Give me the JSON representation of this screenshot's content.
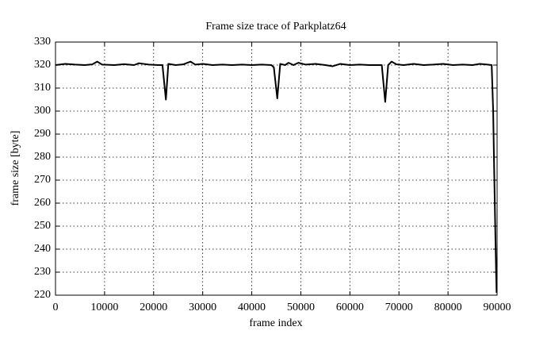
{
  "chart_data": {
    "type": "line",
    "title": "Frame size trace of Parkplatz64",
    "x_label": "frame index",
    "y_label": "frame size [byte]",
    "x": [
      0,
      2000,
      4000,
      6000,
      7500,
      8500,
      9500,
      12000,
      14000,
      16000,
      17000,
      19000,
      21000,
      21800,
      22500,
      23000,
      24500,
      26000,
      27500,
      28500,
      30000,
      32000,
      34000,
      36000,
      38000,
      40000,
      42000,
      44000,
      44500,
      45200,
      45800,
      46800,
      47500,
      48500,
      49500,
      51000,
      53000,
      55000,
      56500,
      58000,
      60000,
      62000,
      64000,
      66500,
      67200,
      67800,
      68500,
      69500,
      71000,
      73000,
      75000,
      77000,
      79000,
      81000,
      83000,
      85000,
      86500,
      88000,
      88900,
      89200,
      89400,
      89600,
      89800,
      89900
    ],
    "series": [
      {
        "name": "Parkplatz64",
        "color": "#000000",
        "values": [
          320,
          320.5,
          320.2,
          320,
          320.3,
          321.5,
          320.2,
          320,
          320.4,
          320,
          320.8,
          320.2,
          320,
          320,
          305,
          320.5,
          320,
          320.3,
          321.5,
          320.2,
          320.5,
          320,
          320.2,
          320,
          320.2,
          320,
          320.2,
          320,
          319,
          305.5,
          320.5,
          320,
          321,
          320,
          321,
          320.2,
          320.5,
          320,
          319.5,
          320.5,
          320,
          320.2,
          320,
          320,
          304,
          320,
          321.5,
          320.3,
          320,
          320.5,
          320,
          320.2,
          320.5,
          320,
          320.2,
          320,
          320.5,
          320.2,
          320,
          300,
          275,
          252,
          230,
          221
        ]
      }
    ],
    "xlim": [
      0,
      90000
    ],
    "xticks": [
      0,
      10000,
      20000,
      30000,
      40000,
      50000,
      60000,
      70000,
      80000,
      90000
    ],
    "ylim": [
      220,
      330
    ],
    "yticks": [
      220,
      230,
      240,
      250,
      260,
      270,
      280,
      290,
      300,
      310,
      320,
      330
    ],
    "grid": true
  }
}
